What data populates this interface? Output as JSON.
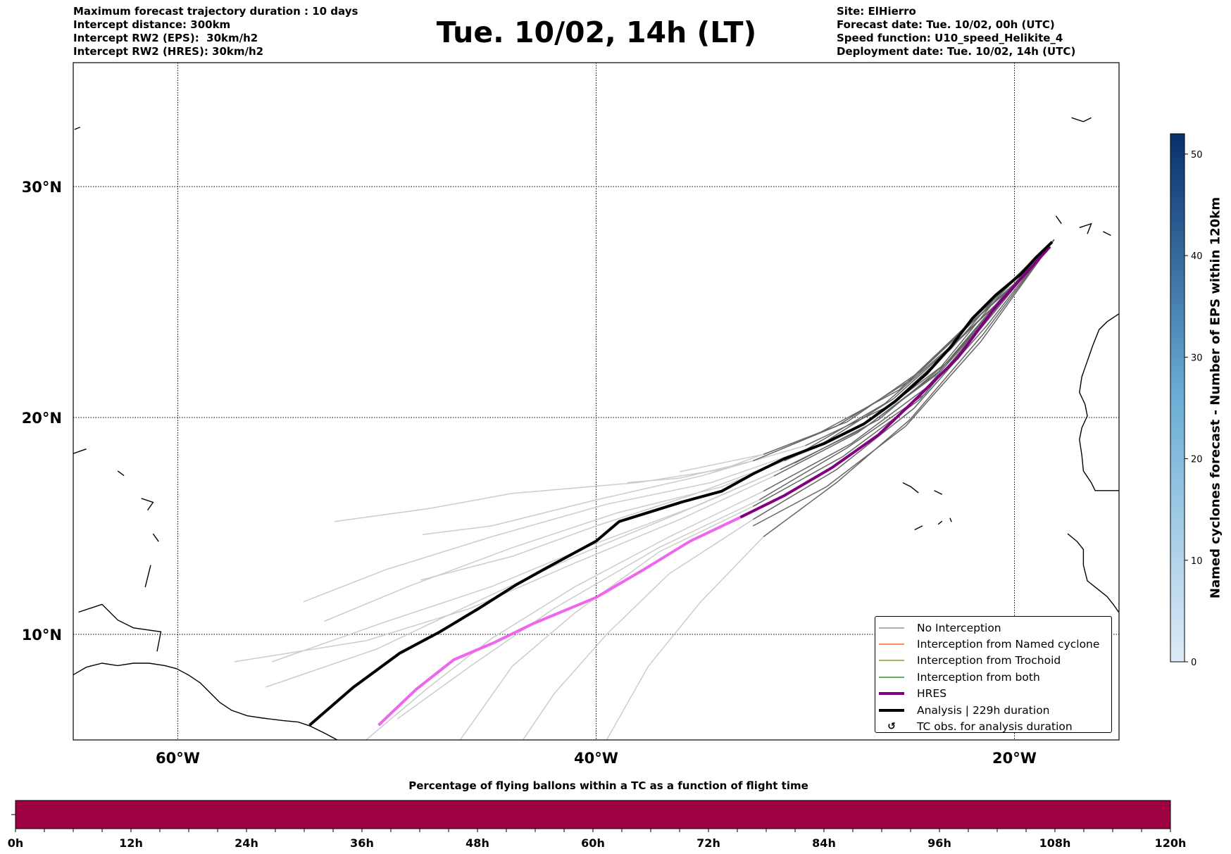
{
  "header": {
    "left": [
      "Maximum forecast trajectory duration : 10 days",
      "Intercept distance: 300km",
      "Intercept RW2 (EPS):  30km/h2",
      "Intercept RW2 (HRES): 30km/h2"
    ],
    "title": "Tue. 10/02, 14h (LT)",
    "right": [
      "Site: ElHierro",
      "Forecast date: Tue. 10/02, 00h (UTC)",
      "Speed function: U10_speed_Helikite_4",
      "Deployment date: Tue. 10/02, 14h (UTC)"
    ]
  },
  "chart_data": [
    {
      "type": "line",
      "title": "Trajectory map",
      "lon_range": [
        -65,
        -15
      ],
      "lat_range": [
        5,
        35.4
      ],
      "x_ticks": [
        {
          "value": -60,
          "label": "60°W"
        },
        {
          "value": -40,
          "label": "40°W"
        },
        {
          "value": -20,
          "label": "20°W"
        }
      ],
      "y_ticks": [
        {
          "value": 10,
          "label": "10°N"
        },
        {
          "value": 20,
          "label": "20°N"
        },
        {
          "value": 30,
          "label": "30°N"
        }
      ],
      "grid": true,
      "colors": {
        "no_interception_dark": "#666666",
        "no_interception_light": "#cccccc",
        "named_cyclone": "#ff4500",
        "trochoid": "#808000",
        "both": "#008000",
        "hres": "#800080",
        "hres_light": "#ee66ee",
        "analysis": "#000000"
      },
      "legend": {
        "placement": "lower-right",
        "entries": [
          "No Interception",
          "Interception from Named cyclone",
          "Interception from Trochoid",
          "Interception from both",
          "HRES",
          "Analysis | 229h duration",
          "TC obs. for analysis duration"
        ]
      },
      "analysis": [
        [
          -18.2,
          27.6
        ],
        [
          -19.0,
          26.9
        ],
        [
          -19.7,
          26.2
        ],
        [
          -20.9,
          25.3
        ],
        [
          -22.0,
          24.3
        ],
        [
          -23.1,
          23.0
        ],
        [
          -24.2,
          21.9
        ],
        [
          -25.7,
          20.7
        ],
        [
          -27.2,
          19.7
        ],
        [
          -29.1,
          18.8
        ],
        [
          -31.0,
          18.1
        ],
        [
          -32.5,
          17.4
        ],
        [
          -34.0,
          16.6
        ],
        [
          -35.9,
          16.1
        ],
        [
          -38.9,
          15.2
        ],
        [
          -40.0,
          14.3
        ],
        [
          -42.3,
          13.1
        ],
        [
          -43.8,
          12.3
        ],
        [
          -45.6,
          11.2
        ],
        [
          -47.5,
          10.1
        ],
        [
          -49.4,
          9.1
        ],
        [
          -51.6,
          7.5
        ],
        [
          -53.7,
          5.7
        ]
      ],
      "hres": [
        [
          -18.3,
          27.4
        ],
        [
          -19.4,
          26.3
        ],
        [
          -20.9,
          24.8
        ],
        [
          -22.7,
          22.6
        ],
        [
          -24.6,
          20.9
        ],
        [
          -26.5,
          19.2
        ],
        [
          -28.7,
          17.7
        ],
        [
          -31.0,
          16.4
        ],
        [
          -33.1,
          15.4
        ],
        [
          -35.5,
          14.3
        ],
        [
          -37.7,
          13.0
        ],
        [
          -40.0,
          11.7
        ],
        [
          -43.0,
          10.5
        ],
        [
          -44.9,
          9.6
        ],
        [
          -46.8,
          8.8
        ],
        [
          -48.6,
          7.4
        ],
        [
          -50.4,
          5.7
        ]
      ],
      "hres_light_after_lon": -33.1,
      "eps_light_after_lon": -33.5,
      "eps": [
        [
          [
            -18.1,
            27.7
          ],
          [
            -20.2,
            25.8
          ],
          [
            -22.5,
            23.8
          ],
          [
            -25.5,
            21.2
          ],
          [
            -29.5,
            19.2
          ],
          [
            -34,
            17.6
          ],
          [
            -38,
            17.0
          ],
          [
            -44,
            16.5
          ],
          [
            -48,
            15.8
          ],
          [
            -52.5,
            15.2
          ]
        ],
        [
          [
            -18.1,
            27.7
          ],
          [
            -20.5,
            25.6
          ],
          [
            -23,
            23.0
          ],
          [
            -26,
            20.5
          ],
          [
            -30,
            18.7
          ],
          [
            -35,
            17.3
          ],
          [
            -40,
            16.2
          ],
          [
            -45,
            15.0
          ],
          [
            -48.3,
            14.6
          ]
        ],
        [
          [
            -18.1,
            27.7
          ],
          [
            -20.8,
            25.2
          ],
          [
            -23.5,
            22.2
          ],
          [
            -27,
            19.8
          ],
          [
            -31,
            18.0
          ],
          [
            -35.5,
            16.4
          ],
          [
            -40,
            15.0
          ],
          [
            -44,
            13.6
          ],
          [
            -48.4,
            12.5
          ]
        ],
        [
          [
            -18.1,
            27.7
          ],
          [
            -20.6,
            25.0
          ],
          [
            -23.2,
            22.4
          ],
          [
            -26.5,
            19.9
          ],
          [
            -30.5,
            17.9
          ],
          [
            -35,
            16.0
          ],
          [
            -40,
            14.2
          ],
          [
            -45,
            12.2
          ],
          [
            -50,
            10.6
          ],
          [
            -55.5,
            8.7
          ]
        ],
        [
          [
            -18.1,
            27.7
          ],
          [
            -20.9,
            24.8
          ],
          [
            -23.8,
            21.8
          ],
          [
            -27.5,
            19.3
          ],
          [
            -31.5,
            17.3
          ],
          [
            -36,
            15.3
          ],
          [
            -41,
            13.3
          ],
          [
            -46,
            11.2
          ],
          [
            -51,
            9.7
          ],
          [
            -57.3,
            8.7
          ]
        ],
        [
          [
            -18.1,
            27.7
          ],
          [
            -20.7,
            25.1
          ],
          [
            -23.6,
            22.0
          ],
          [
            -27.2,
            19.5
          ],
          [
            -31.2,
            17.6
          ],
          [
            -36,
            15.6
          ],
          [
            -41,
            13.6
          ],
          [
            -45.5,
            11.6
          ],
          [
            -50.5,
            9.3
          ],
          [
            -55.8,
            7.5
          ]
        ],
        [
          [
            -18.1,
            27.7
          ],
          [
            -21.0,
            24.6
          ],
          [
            -24.2,
            21.3
          ],
          [
            -27.8,
            18.8
          ],
          [
            -32,
            16.6
          ],
          [
            -36.5,
            14.5
          ],
          [
            -41,
            12.2
          ],
          [
            -45,
            9.8
          ],
          [
            -48,
            7.5
          ],
          [
            -51,
            5.0
          ]
        ],
        [
          [
            -18.1,
            27.7
          ],
          [
            -21.2,
            24.3
          ],
          [
            -24.5,
            20.8
          ],
          [
            -28.2,
            18.2
          ],
          [
            -32.5,
            15.9
          ],
          [
            -37,
            13.8
          ],
          [
            -41,
            11.0
          ],
          [
            -44,
            8.5
          ],
          [
            -46.5,
            5.0
          ]
        ],
        [
          [
            -18.1,
            27.7
          ],
          [
            -21.3,
            24.0
          ],
          [
            -24.8,
            20.4
          ],
          [
            -28.5,
            17.6
          ],
          [
            -32.5,
            15.3
          ],
          [
            -36.5,
            12.8
          ],
          [
            -39.5,
            10.0
          ],
          [
            -42,
            7.2
          ],
          [
            -43.5,
            5.0
          ]
        ],
        [
          [
            -18.1,
            27.7
          ],
          [
            -21.5,
            23.6
          ],
          [
            -25.0,
            19.9
          ],
          [
            -28.5,
            17.0
          ],
          [
            -32,
            14.5
          ],
          [
            -35,
            11.5
          ],
          [
            -37.5,
            8.5
          ],
          [
            -39.5,
            5.0
          ]
        ],
        [
          [
            -18.1,
            27.7
          ],
          [
            -20.3,
            25.4
          ],
          [
            -22.6,
            23.4
          ],
          [
            -25.8,
            20.8
          ],
          [
            -29.5,
            18.6
          ],
          [
            -34,
            16.8
          ],
          [
            -39,
            15.6
          ],
          [
            -44,
            14.0
          ],
          [
            -49,
            12.2
          ],
          [
            -53,
            10.6
          ]
        ],
        [
          [
            -18.1,
            27.7
          ],
          [
            -20.4,
            25.3
          ],
          [
            -22.9,
            23.2
          ],
          [
            -26.2,
            20.6
          ],
          [
            -30,
            18.5
          ],
          [
            -34.5,
            17.0
          ],
          [
            -39.5,
            16.0
          ],
          [
            -45,
            14.5
          ],
          [
            -50,
            13.0
          ],
          [
            -54,
            11.5
          ]
        ],
        [
          [
            -18.1,
            27.7
          ],
          [
            -21.1,
            24.5
          ],
          [
            -24.3,
            21.0
          ],
          [
            -28,
            18.6
          ],
          [
            -32.2,
            16.2
          ],
          [
            -37,
            14.0
          ],
          [
            -42,
            11.2
          ],
          [
            -46,
            8.5
          ],
          [
            -49.5,
            6.0
          ]
        ],
        [
          [
            -18.1,
            27.7
          ],
          [
            -19.8,
            25.9
          ],
          [
            -21.8,
            24.3
          ],
          [
            -24.5,
            22.0
          ],
          [
            -28,
            19.8
          ],
          [
            -32,
            18.3
          ],
          [
            -36,
            17.5
          ]
        ],
        [
          [
            -18.1,
            27.7
          ],
          [
            -20.0,
            25.8
          ],
          [
            -22.2,
            24.0
          ],
          [
            -25,
            21.6
          ],
          [
            -28.5,
            19.6
          ],
          [
            -32.5,
            18.0
          ],
          [
            -36,
            17.2
          ],
          [
            -38.5,
            17.0
          ]
        ],
        [
          [
            -18.1,
            27.7
          ],
          [
            -21.6,
            23.3
          ],
          [
            -25.2,
            19.6
          ],
          [
            -29,
            16.8
          ],
          [
            -32.5,
            15.0
          ]
        ]
      ]
    },
    {
      "type": "bar",
      "title": "Percentage of flying ballons within a TC as a function of flight time",
      "x_range_hours": [
        0,
        120
      ],
      "x_ticks": [
        "0h",
        "12h",
        "24h",
        "36h",
        "48h",
        "60h",
        "72h",
        "84h",
        "96h",
        "108h",
        "120h"
      ],
      "fill_color": "#9e0142",
      "fill_fraction": 1.0
    },
    {
      "type": "colorbar",
      "label": "Named cyclones forecast - Number of EPS within 120km",
      "range": [
        0,
        52
      ],
      "ticks": [
        "0",
        "10",
        "20",
        "30",
        "40",
        "50"
      ],
      "color_low": "#deebf7",
      "color_high": "#08306b"
    }
  ]
}
